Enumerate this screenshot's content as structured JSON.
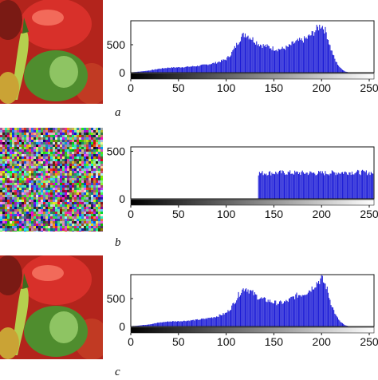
{
  "panels": [
    {
      "caption": "a",
      "image": "peppers-photo",
      "chart_data": {
        "type": "bar",
        "title": "",
        "xlabel": "",
        "ylabel": "",
        "xlim": [
          0,
          255
        ],
        "ylim": [
          0,
          900
        ],
        "xticks": [
          0,
          50,
          100,
          150,
          200,
          250
        ],
        "yticks": [
          0,
          500
        ],
        "grid": false,
        "bar_color": "#1a1ad6",
        "profile": [
          [
            0,
            5
          ],
          [
            10,
            20
          ],
          [
            20,
            40
          ],
          [
            30,
            70
          ],
          [
            40,
            90
          ],
          [
            50,
            95
          ],
          [
            60,
            105
          ],
          [
            70,
            120
          ],
          [
            80,
            145
          ],
          [
            90,
            180
          ],
          [
            100,
            240
          ],
          [
            105,
            330
          ],
          [
            110,
            470
          ],
          [
            115,
            620
          ],
          [
            120,
            700
          ],
          [
            125,
            640
          ],
          [
            130,
            570
          ],
          [
            135,
            510
          ],
          [
            140,
            480
          ],
          [
            145,
            460
          ],
          [
            150,
            430
          ],
          [
            155,
            420
          ],
          [
            160,
            430
          ],
          [
            165,
            460
          ],
          [
            170,
            520
          ],
          [
            175,
            560
          ],
          [
            180,
            580
          ],
          [
            185,
            620
          ],
          [
            190,
            690
          ],
          [
            195,
            780
          ],
          [
            200,
            860
          ],
          [
            205,
            720
          ],
          [
            210,
            420
          ],
          [
            215,
            200
          ],
          [
            220,
            80
          ],
          [
            225,
            20
          ],
          [
            230,
            0
          ],
          [
            255,
            0
          ]
        ]
      }
    },
    {
      "caption": "b",
      "image": "encrypted-noise",
      "chart_data": {
        "type": "bar",
        "title": "",
        "xlabel": "",
        "ylabel": "",
        "xlim": [
          0,
          255
        ],
        "ylim": [
          0,
          530
        ],
        "xticks": [
          0,
          50,
          100,
          150,
          200,
          250
        ],
        "yticks": [
          0,
          500
        ],
        "grid": false,
        "bar_color": "#1a1ad6",
        "profile": [
          [
            0,
            0
          ],
          [
            133,
            0
          ],
          [
            134,
            270
          ],
          [
            160,
            275
          ],
          [
            200,
            270
          ],
          [
            230,
            280
          ],
          [
            255,
            275
          ]
        ]
      }
    },
    {
      "caption": "c",
      "image": "peppers-photo",
      "chart_data": {
        "type": "bar",
        "title": "",
        "xlabel": "",
        "ylabel": "",
        "xlim": [
          0,
          255
        ],
        "ylim": [
          0,
          900
        ],
        "xticks": [
          0,
          50,
          100,
          150,
          200,
          250
        ],
        "yticks": [
          0,
          500
        ],
        "grid": false,
        "bar_color": "#1a1ad6",
        "profile": [
          [
            0,
            5
          ],
          [
            10,
            20
          ],
          [
            20,
            40
          ],
          [
            30,
            70
          ],
          [
            40,
            90
          ],
          [
            50,
            95
          ],
          [
            60,
            105
          ],
          [
            70,
            120
          ],
          [
            80,
            145
          ],
          [
            90,
            180
          ],
          [
            100,
            240
          ],
          [
            105,
            330
          ],
          [
            110,
            470
          ],
          [
            115,
            620
          ],
          [
            120,
            700
          ],
          [
            125,
            640
          ],
          [
            130,
            570
          ],
          [
            135,
            510
          ],
          [
            140,
            480
          ],
          [
            145,
            460
          ],
          [
            150,
            430
          ],
          [
            155,
            420
          ],
          [
            160,
            430
          ],
          [
            165,
            460
          ],
          [
            170,
            520
          ],
          [
            175,
            560
          ],
          [
            180,
            580
          ],
          [
            185,
            620
          ],
          [
            190,
            690
          ],
          [
            195,
            780
          ],
          [
            200,
            860
          ],
          [
            205,
            720
          ],
          [
            210,
            420
          ],
          [
            215,
            200
          ],
          [
            220,
            80
          ],
          [
            225,
            20
          ],
          [
            230,
            0
          ],
          [
            255,
            0
          ]
        ]
      }
    }
  ]
}
